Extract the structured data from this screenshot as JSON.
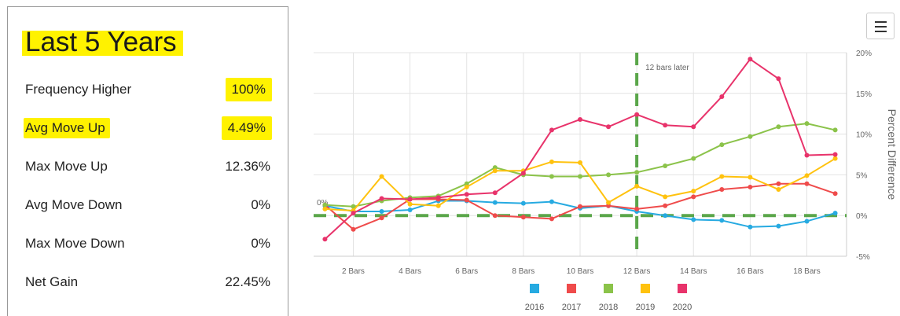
{
  "panel": {
    "title": "Last 5 Years",
    "stats": [
      {
        "label": "Frequency Higher",
        "value": "100%"
      },
      {
        "label": "Avg Move Up",
        "value": "4.49%"
      },
      {
        "label": "Max Move Up",
        "value": "12.36%"
      },
      {
        "label": "Avg Move Down",
        "value": "0%"
      },
      {
        "label": "Max Move Down",
        "value": "0%"
      },
      {
        "label": "Net Gain",
        "value": "22.45%"
      }
    ],
    "highlight_color": "#fff200"
  },
  "menu": {
    "icon": "hamburger-menu-icon"
  },
  "chart_data": {
    "type": "line",
    "title": "",
    "xlabel": "",
    "ylabel": "Percent Difference",
    "x": [
      1,
      2,
      3,
      4,
      5,
      6,
      7,
      8,
      9,
      10,
      11,
      12,
      13,
      14,
      15,
      16,
      17,
      18,
      19
    ],
    "x_ticks": [
      2,
      4,
      6,
      8,
      10,
      12,
      14,
      16,
      18
    ],
    "x_tick_labels": [
      "2 Bars",
      "4 Bars",
      "6 Bars",
      "8 Bars",
      "10 Bars",
      "12 Bars",
      "14 Bars",
      "16 Bars",
      "18 Bars"
    ],
    "xlim": [
      0.6,
      19.4
    ],
    "ylim": [
      -5,
      20
    ],
    "y_ticks": [
      -5,
      0,
      5,
      10,
      15,
      20
    ],
    "y_tick_labels": [
      "-5%",
      "0%",
      "5%",
      "10%",
      "15%",
      "20%"
    ],
    "zero_line_label": "0%",
    "vertical_marker": {
      "x": 12,
      "label": "12 bars later",
      "color": "#5aa64a"
    },
    "zero_line_color": "#5aa64a",
    "grid": true,
    "legend_position": "bottom",
    "series": [
      {
        "name": "2016",
        "color": "#26aae1",
        "values": [
          1.2,
          0.5,
          0.5,
          0.7,
          1.8,
          1.8,
          1.6,
          1.5,
          1.7,
          0.9,
          1.2,
          0.5,
          0.0,
          -0.5,
          -0.6,
          -1.4,
          -1.3,
          -0.7,
          0.3
        ]
      },
      {
        "name": "2017",
        "color": "#ef4b4b",
        "values": [
          1.3,
          -1.7,
          -0.3,
          2.0,
          2.0,
          1.9,
          0.0,
          -0.2,
          -0.4,
          1.1,
          1.2,
          0.8,
          1.2,
          2.3,
          3.2,
          3.5,
          3.9,
          3.9,
          2.7
        ]
      },
      {
        "name": "2018",
        "color": "#8bc34a",
        "values": [
          1.3,
          1.1,
          1.8,
          2.2,
          2.4,
          3.9,
          5.9,
          5.0,
          4.8,
          4.8,
          5.0,
          5.3,
          6.1,
          7.0,
          8.7,
          9.7,
          10.9,
          11.3,
          10.5
        ]
      },
      {
        "name": "2019",
        "color": "#ffc20e",
        "values": [
          0.8,
          0.6,
          4.8,
          1.4,
          1.2,
          3.5,
          5.5,
          5.5,
          6.6,
          6.5,
          1.6,
          3.6,
          2.3,
          3.0,
          4.8,
          4.7,
          3.2,
          4.9,
          7.0
        ]
      },
      {
        "name": "2020",
        "color": "#e8336b",
        "values": [
          -2.9,
          0.3,
          2.1,
          2.0,
          2.2,
          2.6,
          2.8,
          5.2,
          10.5,
          11.8,
          10.9,
          12.4,
          11.1,
          10.9,
          14.6,
          19.2,
          16.8,
          7.4,
          7.5
        ]
      }
    ]
  }
}
